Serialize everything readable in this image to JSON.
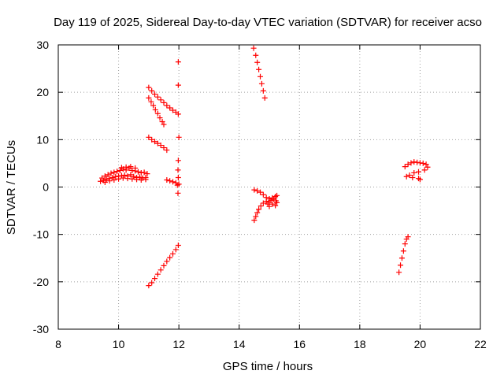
{
  "chart_data": {
    "type": "scatter",
    "title": "Day 119 of 2025, Sidereal Day-to-day VTEC variation (SDTVAR) for receiver acso",
    "xlabel": "GPS time / hours",
    "ylabel": "SDTVAR / TECUs",
    "xlim": [
      8,
      22
    ],
    "ylim": [
      -30,
      30
    ],
    "xticks": [
      8,
      10,
      12,
      14,
      16,
      18,
      20,
      22
    ],
    "yticks": [
      -30,
      -20,
      -10,
      0,
      10,
      20,
      30
    ],
    "xtick_labels": [
      "8",
      "10",
      "12",
      "14",
      "16",
      "18",
      "20",
      "22"
    ],
    "ytick_labels": [
      "-30",
      "-20",
      "-10",
      "0",
      "10",
      "20",
      "30"
    ],
    "grid": true,
    "marker": "+",
    "color": "#ff0000",
    "series": [
      {
        "points": [
          [
            9.4,
            1.2
          ],
          [
            9.45,
            1.9
          ],
          [
            9.5,
            1.4
          ],
          [
            9.55,
            2.3
          ],
          [
            9.6,
            1.6
          ],
          [
            9.65,
            2.6
          ],
          [
            9.7,
            1.8
          ],
          [
            9.75,
            2.9
          ],
          [
            9.8,
            2.0
          ],
          [
            9.85,
            3.1
          ],
          [
            9.9,
            2.2
          ],
          [
            9.95,
            3.3
          ],
          [
            10.0,
            2.3
          ],
          [
            10.05,
            3.5
          ],
          [
            10.1,
            2.4
          ],
          [
            10.15,
            3.8
          ],
          [
            10.2,
            2.5
          ],
          [
            10.25,
            3.6
          ],
          [
            10.3,
            2.3
          ],
          [
            10.35,
            4.0
          ],
          [
            10.4,
            2.6
          ],
          [
            10.45,
            3.5
          ],
          [
            10.5,
            2.2
          ],
          [
            10.55,
            3.4
          ],
          [
            10.6,
            2.0
          ],
          [
            10.65,
            3.2
          ],
          [
            10.7,
            2.1
          ],
          [
            10.75,
            3.0
          ],
          [
            10.8,
            1.9
          ],
          [
            10.85,
            3.1
          ],
          [
            10.9,
            2.0
          ],
          [
            10.95,
            2.8
          ],
          [
            9.55,
            1.0
          ],
          [
            9.7,
            1.3
          ],
          [
            9.85,
            1.5
          ],
          [
            10.0,
            1.7
          ],
          [
            10.15,
            1.9
          ],
          [
            10.3,
            1.8
          ],
          [
            10.45,
            1.7
          ],
          [
            10.6,
            1.6
          ],
          [
            10.75,
            1.5
          ],
          [
            10.9,
            1.6
          ],
          [
            10.1,
            4.1
          ],
          [
            10.25,
            4.2
          ],
          [
            10.4,
            4.3
          ],
          [
            10.55,
            4.0
          ]
        ]
      },
      {
        "points": [
          [
            11.0,
            21.0
          ],
          [
            11.1,
            20.3
          ],
          [
            11.2,
            19.6
          ],
          [
            11.3,
            19.0
          ],
          [
            11.4,
            18.4
          ],
          [
            11.5,
            17.8
          ],
          [
            11.6,
            17.2
          ],
          [
            11.7,
            16.7
          ],
          [
            11.8,
            16.2
          ],
          [
            11.9,
            15.8
          ],
          [
            11.98,
            15.4
          ]
        ]
      },
      {
        "points": [
          [
            11.0,
            18.8
          ],
          [
            11.08,
            18.0
          ],
          [
            11.15,
            17.2
          ],
          [
            11.22,
            16.3
          ],
          [
            11.3,
            15.5
          ],
          [
            11.37,
            14.6
          ],
          [
            11.45,
            13.8
          ],
          [
            11.5,
            13.2
          ]
        ]
      },
      {
        "points": [
          [
            11.0,
            10.5
          ],
          [
            11.1,
            10.0
          ],
          [
            11.2,
            9.6
          ],
          [
            11.3,
            9.2
          ],
          [
            11.4,
            8.8
          ],
          [
            11.5,
            8.3
          ],
          [
            11.6,
            7.8
          ]
        ]
      },
      {
        "points": [
          [
            11.6,
            1.5
          ],
          [
            11.7,
            1.3
          ],
          [
            11.8,
            1.1
          ],
          [
            11.9,
            0.9
          ],
          [
            12.0,
            0.6
          ],
          [
            11.95,
            0.4
          ]
        ]
      },
      {
        "points": [
          [
            11.98,
            26.4
          ],
          [
            11.98,
            21.5
          ],
          [
            12.0,
            10.5
          ],
          [
            11.98,
            5.6
          ],
          [
            11.97,
            3.6
          ],
          [
            11.98,
            2.0
          ],
          [
            11.97,
            -1.3
          ]
        ]
      },
      {
        "points": [
          [
            11.0,
            -20.8
          ],
          [
            11.1,
            -20.2
          ],
          [
            11.2,
            -19.3
          ],
          [
            11.3,
            -18.4
          ],
          [
            11.4,
            -17.5
          ],
          [
            11.5,
            -16.6
          ],
          [
            11.6,
            -15.7
          ],
          [
            11.7,
            -14.9
          ],
          [
            11.8,
            -14.1
          ],
          [
            11.9,
            -13.2
          ],
          [
            11.98,
            -12.3
          ]
        ]
      },
      {
        "points": [
          [
            14.48,
            29.3
          ],
          [
            14.55,
            27.8
          ],
          [
            14.6,
            26.3
          ],
          [
            14.65,
            24.8
          ],
          [
            14.7,
            23.3
          ],
          [
            14.75,
            21.8
          ],
          [
            14.8,
            20.3
          ],
          [
            14.85,
            18.8
          ]
        ]
      },
      {
        "points": [
          [
            14.5,
            -0.6
          ],
          [
            14.6,
            -0.8
          ],
          [
            14.7,
            -1.1
          ],
          [
            14.8,
            -1.6
          ],
          [
            14.9,
            -2.2
          ],
          [
            15.0,
            -2.5
          ],
          [
            15.1,
            -2.3
          ],
          [
            15.2,
            -2.0
          ],
          [
            15.25,
            -1.8
          ]
        ]
      },
      {
        "points": [
          [
            14.5,
            -7.0
          ],
          [
            14.55,
            -6.2
          ],
          [
            14.6,
            -5.4
          ],
          [
            14.65,
            -4.7
          ],
          [
            14.72,
            -4.0
          ],
          [
            14.8,
            -3.4
          ],
          [
            14.9,
            -3.0
          ],
          [
            15.0,
            -3.2
          ],
          [
            15.1,
            -3.6
          ],
          [
            15.2,
            -3.9
          ],
          [
            15.25,
            -3.3
          ],
          [
            15.0,
            -4.1
          ],
          [
            14.95,
            -3.6
          ],
          [
            15.05,
            -2.8
          ],
          [
            15.15,
            -2.6
          ],
          [
            15.22,
            -2.9
          ]
        ]
      },
      {
        "points": [
          [
            19.3,
            -18.0
          ],
          [
            19.35,
            -16.5
          ],
          [
            19.4,
            -15.0
          ],
          [
            19.45,
            -13.5
          ],
          [
            19.5,
            -12.0
          ],
          [
            19.55,
            -11.0
          ],
          [
            19.6,
            -10.5
          ]
        ]
      },
      {
        "points": [
          [
            19.5,
            4.3
          ],
          [
            19.6,
            4.8
          ],
          [
            19.7,
            5.1
          ],
          [
            19.8,
            5.3
          ],
          [
            19.9,
            5.2
          ],
          [
            20.0,
            5.1
          ],
          [
            20.1,
            5.0
          ],
          [
            20.2,
            4.8
          ],
          [
            20.25,
            4.2
          ],
          [
            20.15,
            3.6
          ],
          [
            19.95,
            3.2
          ],
          [
            19.8,
            3.0
          ],
          [
            19.65,
            2.5
          ],
          [
            19.55,
            2.2
          ],
          [
            19.75,
            2.0
          ],
          [
            19.95,
            1.8
          ],
          [
            20.0,
            1.6
          ]
        ]
      }
    ]
  }
}
